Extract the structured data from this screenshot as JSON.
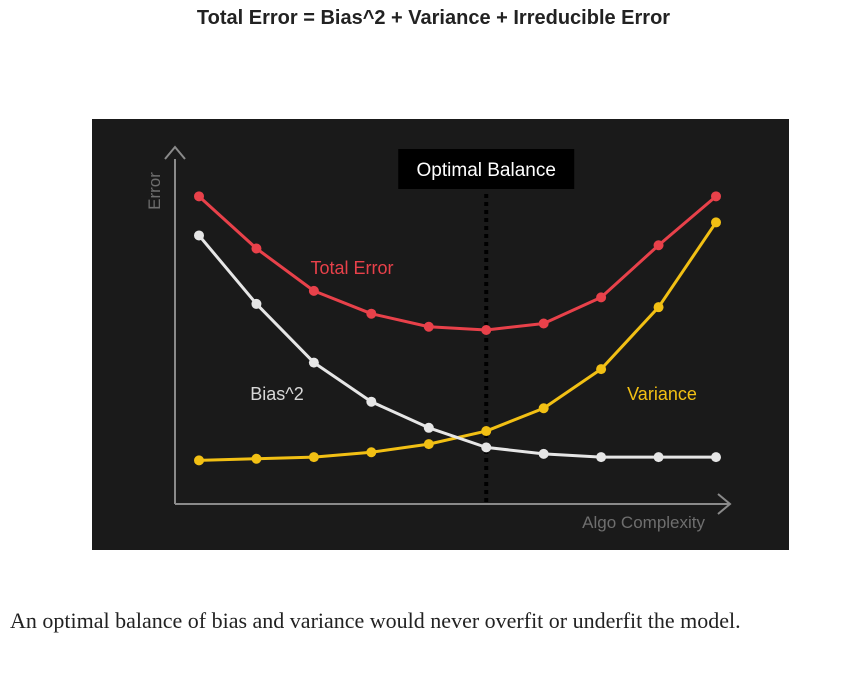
{
  "title": "Total Error = Bias^2 + Variance + Irreducible Error",
  "caption": "An optimal balance of bias and variance would never overfit or underfit the model.",
  "chart_data": {
    "type": "line",
    "background": "#1a1a1a",
    "xlabel": "Algo Complexity",
    "ylabel": "Error",
    "x": [
      1,
      2,
      3,
      4,
      5,
      6,
      7,
      8,
      9,
      10
    ],
    "series": [
      {
        "name": "Total Error",
        "color": "#e8414a",
        "values": [
          9.1,
          7.5,
          6.2,
          5.5,
          5.1,
          5.0,
          5.2,
          6.0,
          7.6,
          9.1
        ]
      },
      {
        "name": "Bias^2",
        "color": "#e6e6e6",
        "values": [
          7.9,
          5.8,
          4.0,
          2.8,
          2.0,
          1.4,
          1.2,
          1.1,
          1.1,
          1.1
        ]
      },
      {
        "name": "Variance",
        "color": "#f2c014",
        "values": [
          1.0,
          1.05,
          1.1,
          1.25,
          1.5,
          1.9,
          2.6,
          3.8,
          5.7,
          8.3
        ]
      }
    ],
    "optimal": {
      "label": "Optimal Balance",
      "x": 6
    },
    "grid": false,
    "ylim": [
      0,
      10
    ]
  }
}
